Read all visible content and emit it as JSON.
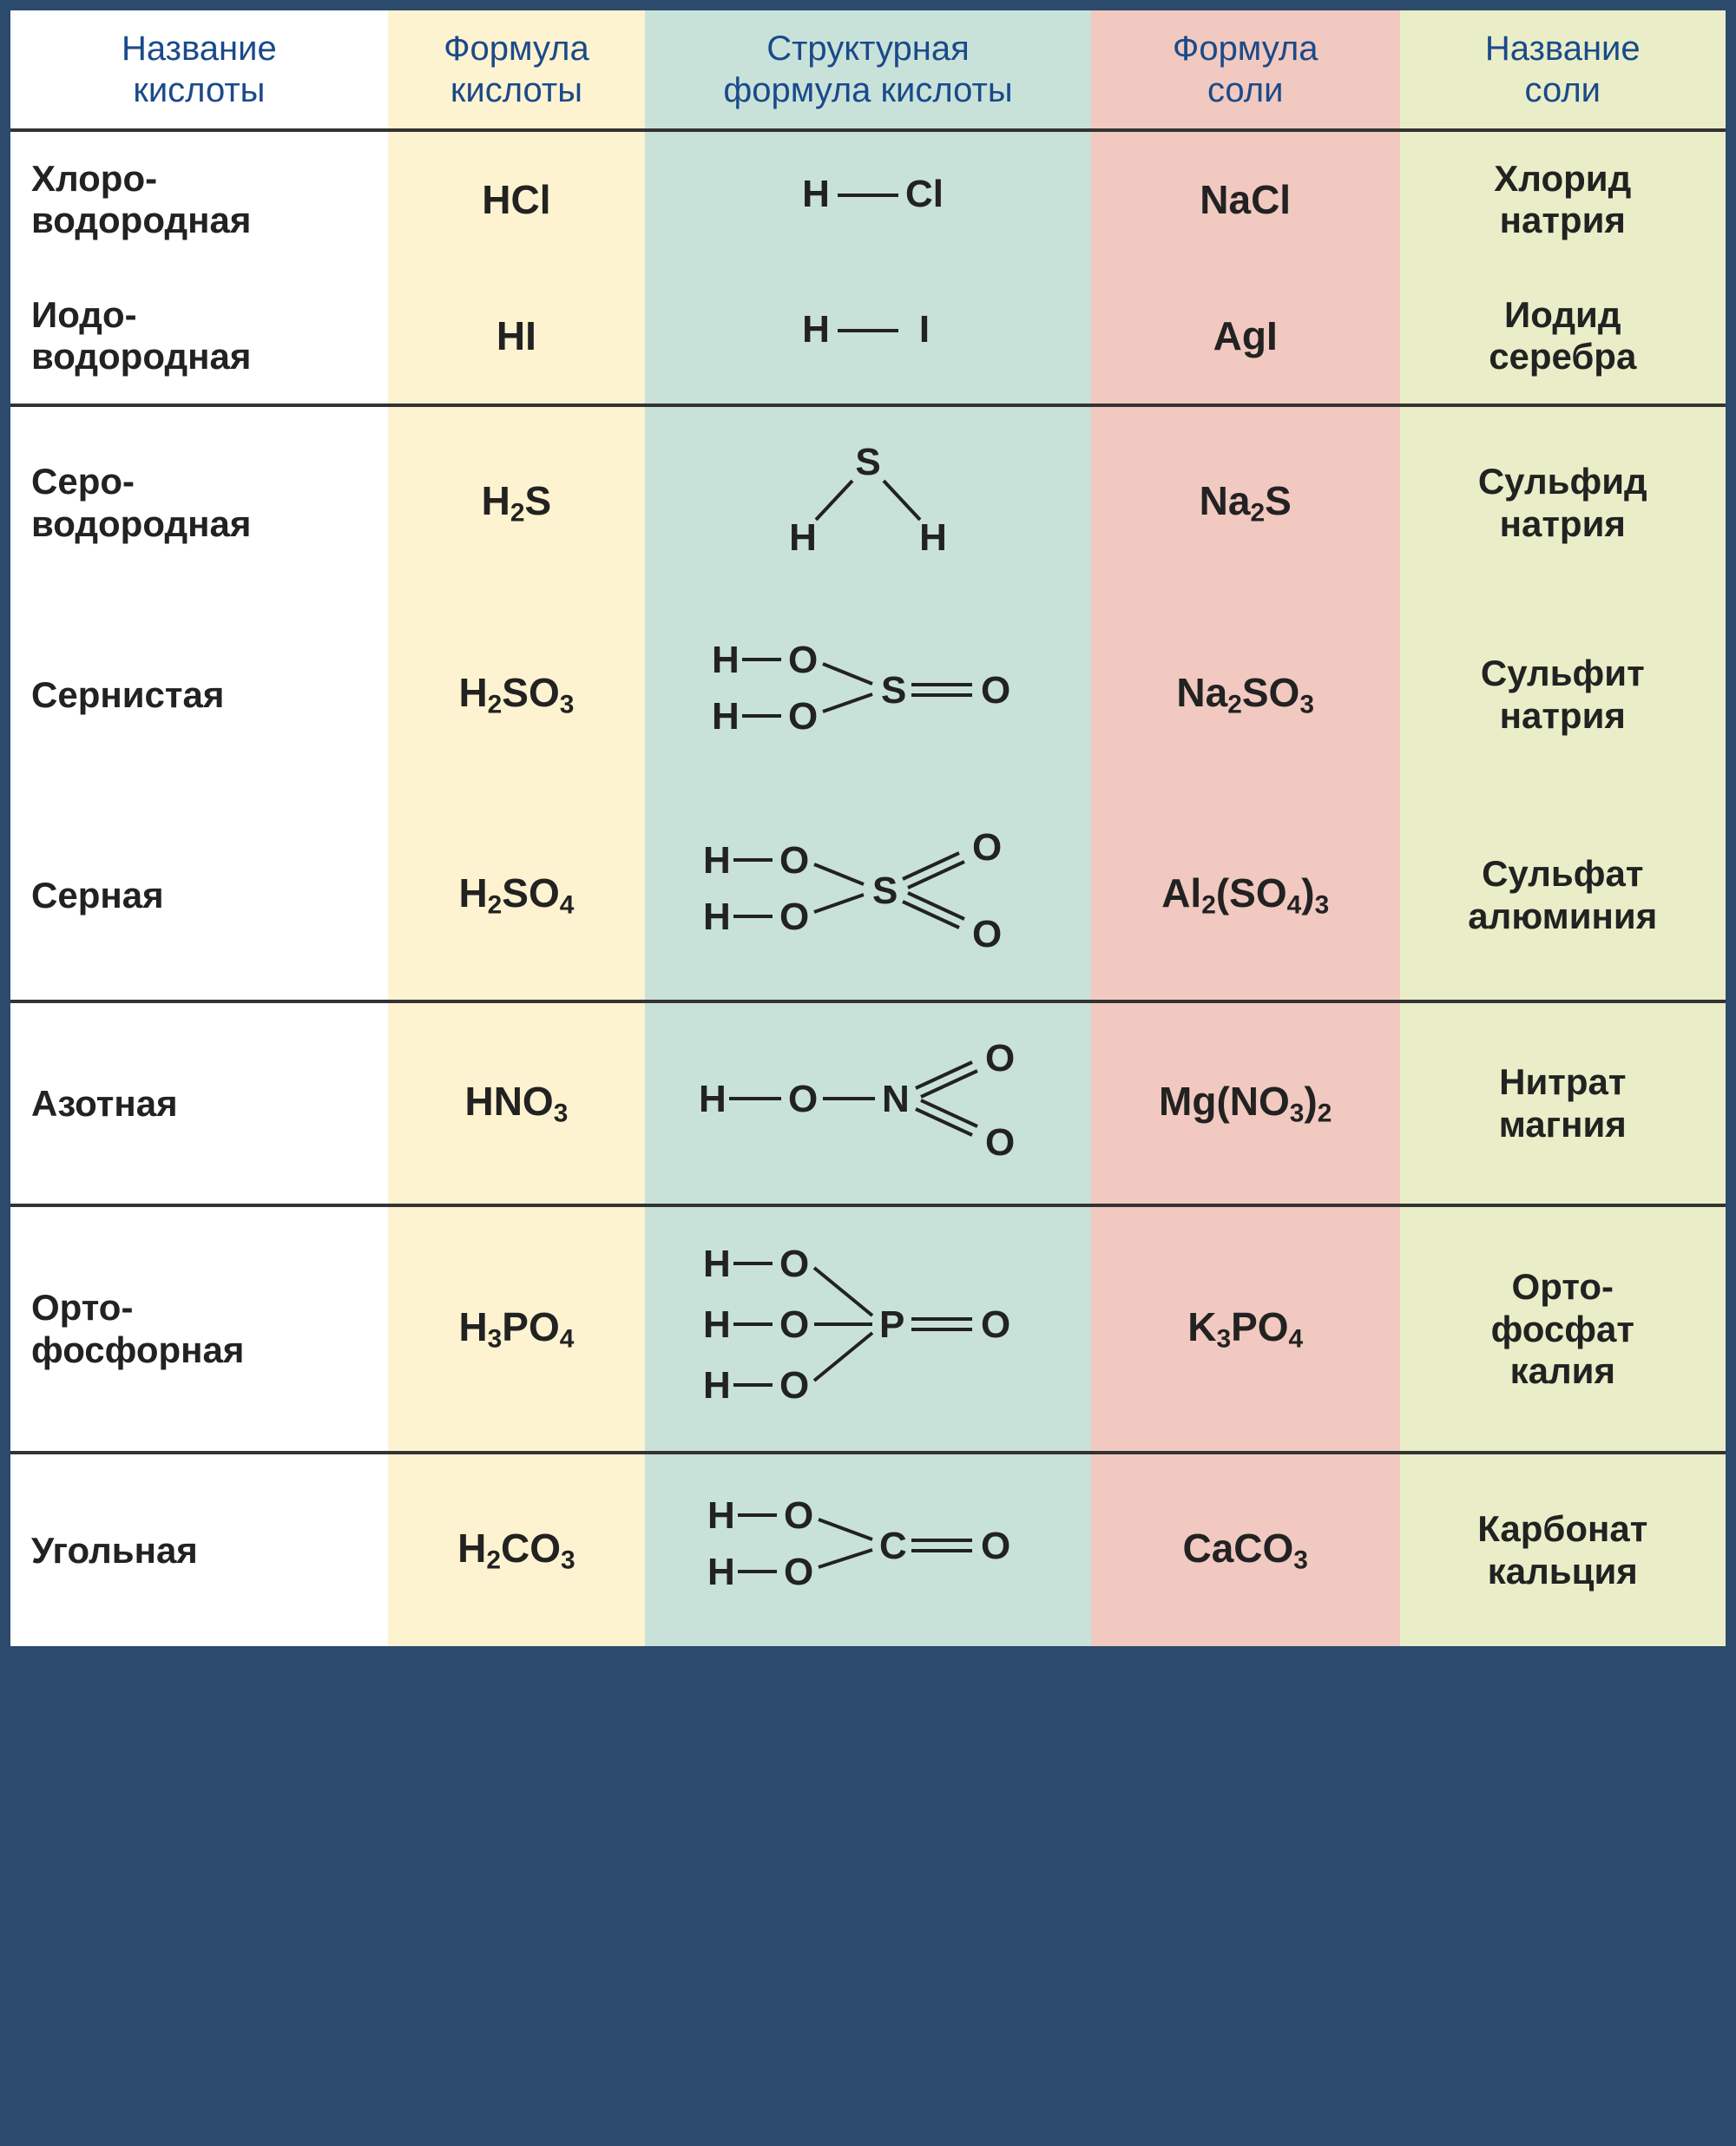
{
  "table": {
    "type": "table",
    "background_color": "#ffffff",
    "border_color": "#2c4a6b",
    "separator_color": "#333333",
    "header_text_color": "#1a4a8a",
    "body_text_color": "#222222",
    "header_fontsize_pt": 30,
    "body_fontsize_pt": 35,
    "columns": [
      {
        "key": "acid_name",
        "label": "Название\nкислоты",
        "bg": "#ffffff",
        "width_pct": 22
      },
      {
        "key": "acid_formula",
        "label": "Формула\nкислоты",
        "bg": "#fdf3d0",
        "width_pct": 15
      },
      {
        "key": "struct",
        "label": "Структурная\nформула кислоты",
        "bg": "#c9e2d9",
        "width_pct": 26
      },
      {
        "key": "salt_formula",
        "label": "Формула\nсоли",
        "bg": "#f1c9c0",
        "width_pct": 18
      },
      {
        "key": "salt_name",
        "label": "Название\nсоли",
        "bg": "#e9eec8",
        "width_pct": 19
      }
    ],
    "groups": [
      {
        "rows": [
          {
            "acid_name": "Хлоро-\nводородная",
            "acid_formula": "HCl",
            "struct_type": "linear",
            "struct_atoms": [
              "H",
              "Cl"
            ],
            "salt_formula": "NaCl",
            "salt_name": "Хлорид\nнатрия"
          },
          {
            "acid_name": "Иодо-\nводородная",
            "acid_formula": "HI",
            "struct_type": "linear",
            "struct_atoms": [
              "H",
              "I"
            ],
            "salt_formula": "AgI",
            "salt_name": "Иодид\nсеребра"
          }
        ]
      },
      {
        "rows": [
          {
            "acid_name": "Серо-\nводородная",
            "acid_formula": "H_2S",
            "struct_type": "bent",
            "struct_center": "S",
            "struct_outer": [
              "H",
              "H"
            ],
            "salt_formula": "Na_2S",
            "salt_name": "Сульфид\nнатрия"
          },
          {
            "acid_name": "Сернистая",
            "acid_formula": "H_2SO_3",
            "struct_type": "sulfurous",
            "salt_formula": "Na_2SO_3",
            "salt_name": "Сульфит\nнатрия"
          },
          {
            "acid_name": "Серная",
            "acid_formula": "H_2SO_4",
            "struct_type": "sulfuric",
            "salt_formula": "Al_2(SO_4)_3",
            "salt_name": "Сульфат\nалюминия"
          }
        ]
      },
      {
        "rows": [
          {
            "acid_name": "Азотная",
            "acid_formula": "HNO_3",
            "struct_type": "nitric",
            "salt_formula": "Mg(NO_3)_2",
            "salt_name": "Нитрат\nмагния"
          }
        ]
      },
      {
        "rows": [
          {
            "acid_name": "Орто-\nфосфорная",
            "acid_formula": "H_3PO_4",
            "struct_type": "phosphoric",
            "salt_formula": "K_3PO_4",
            "salt_name": "Орто-\nфосфат\nкалия"
          }
        ]
      },
      {
        "rows": [
          {
            "acid_name": "Угольная",
            "acid_formula": "H_2CO_3",
            "struct_type": "carbonic",
            "salt_formula": "CaCO_3",
            "salt_name": "Карбонат\nкальция"
          }
        ]
      }
    ]
  }
}
